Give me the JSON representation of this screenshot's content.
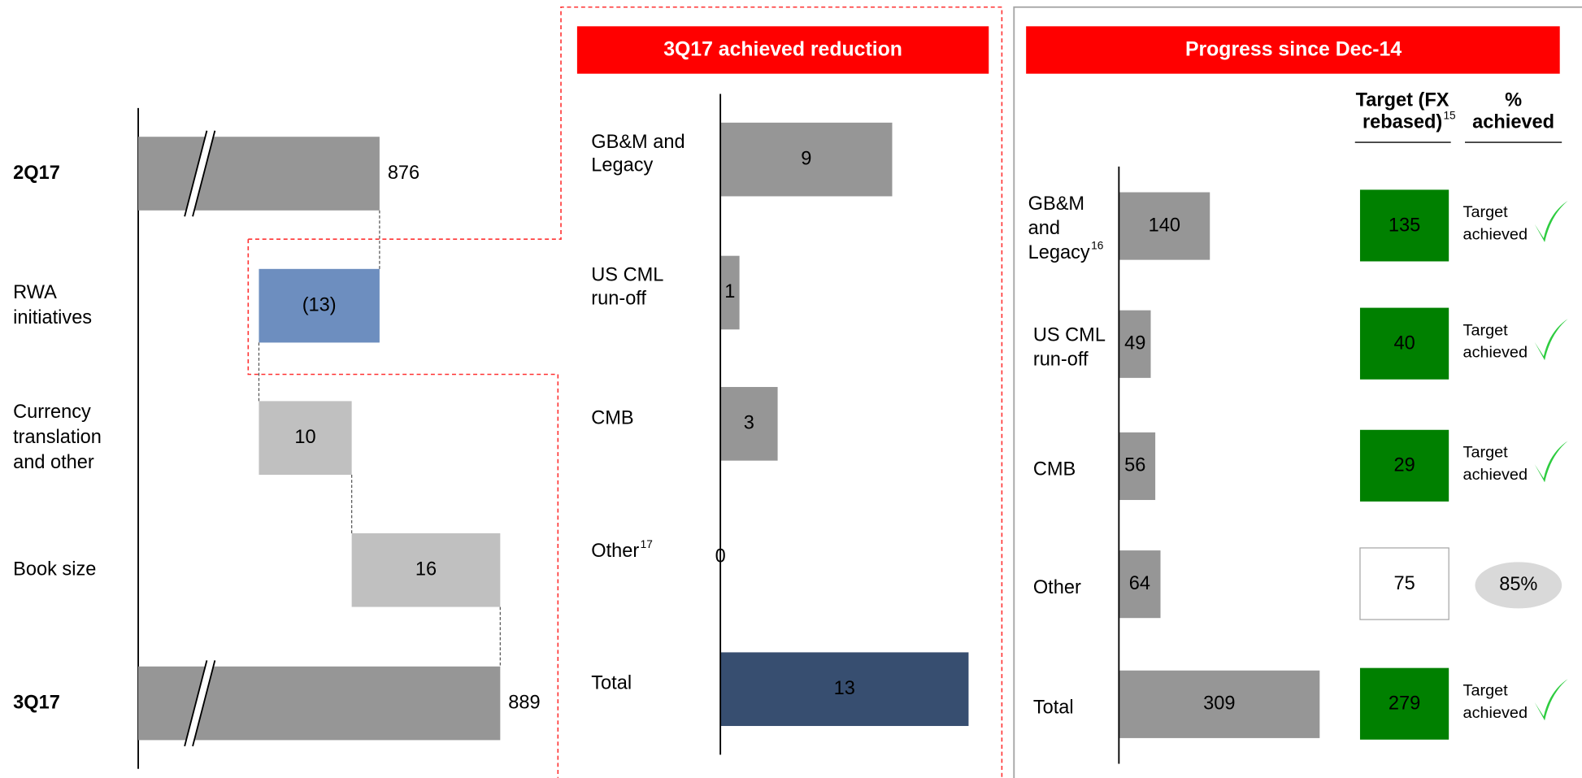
{
  "chart_data": [
    {
      "type": "waterfall",
      "categories": [
        [
          "2Q17"
        ],
        [
          "RWA",
          "initiatives"
        ],
        [
          "Currency",
          "translation",
          "and other"
        ],
        [
          "Book size"
        ],
        [
          "3Q17"
        ]
      ],
      "values": [
        876,
        -13,
        10,
        16,
        889
      ],
      "value_labels": [
        "876",
        "(13)",
        "10",
        "16",
        "889"
      ],
      "colors": [
        "#969696",
        "#6d8ebf",
        "#c0c0c0",
        "#c0c0c0",
        "#969696"
      ],
      "xlim": [
        850,
        900
      ]
    },
    {
      "type": "bar",
      "title": "3Q17 achieved reduction",
      "categories": [
        [
          "GB&M and",
          "Legacy"
        ],
        [
          "US CML",
          "run-off"
        ],
        [
          "CMB"
        ],
        [
          "Other"
        ],
        [
          "Total"
        ]
      ],
      "footnotes": [
        null,
        null,
        null,
        "17",
        null
      ],
      "values": [
        9,
        1,
        3,
        0,
        13
      ],
      "colors": [
        "#969696",
        "#969696",
        "#969696",
        "#969696",
        "#374e70"
      ],
      "xlim": [
        0,
        13
      ]
    },
    {
      "type": "bar-table",
      "title": "Progress since Dec-14",
      "categories": [
        [
          "GB&M",
          "and",
          "Legacy"
        ],
        [
          "US CML",
          "run-off"
        ],
        [
          "CMB"
        ],
        [
          "Other"
        ],
        [
          "Total"
        ]
      ],
      "footnotes": [
        "16",
        null,
        null,
        null,
        null
      ],
      "values": [
        140,
        49,
        56,
        64,
        309
      ],
      "color": "#969696",
      "xlim": [
        0,
        309
      ],
      "columns": [
        [
          "Target (FX",
          "rebased)"
        ],
        [
          "%",
          "achieved"
        ]
      ],
      "column_footnotes": [
        "15",
        null
      ],
      "targets": [
        135,
        40,
        29,
        75,
        279
      ],
      "achieved": [
        true,
        true,
        true,
        false,
        true
      ],
      "status": [
        [
          "Target",
          "achieved"
        ],
        [
          "Target",
          "achieved"
        ],
        [
          "Target",
          "achieved"
        ],
        [
          "85%"
        ],
        [
          "Target",
          "achieved"
        ]
      ],
      "target_color": "#008000"
    }
  ]
}
